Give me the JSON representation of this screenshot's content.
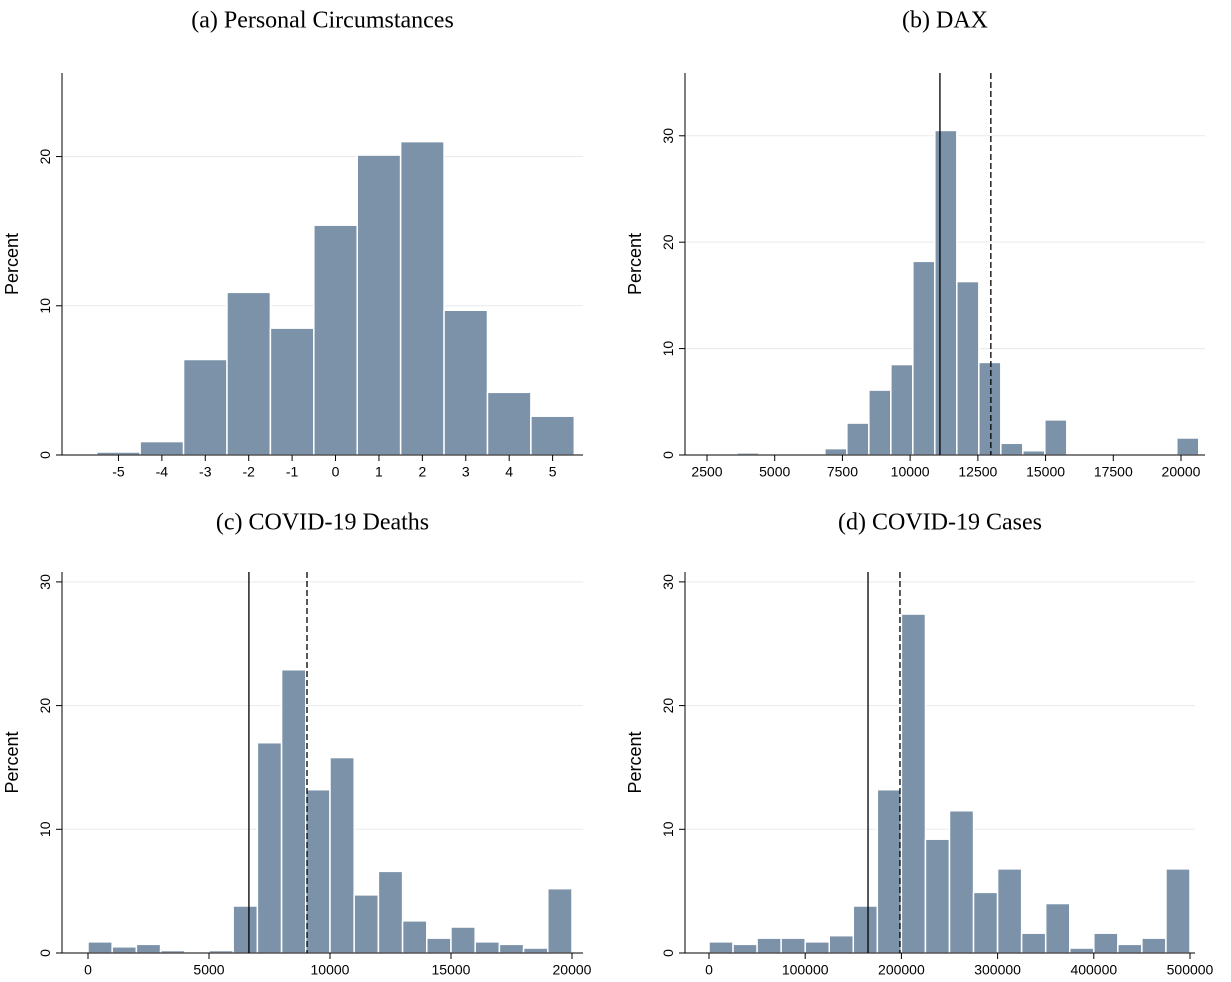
{
  "chart_data": [
    {
      "type": "histogram",
      "title": "(a) Personal Circumstances",
      "ylabel": "Percent",
      "color": "#7b92a8",
      "bins": [
        -5.5,
        -4.5,
        -3.5,
        -2.5,
        -1.5,
        -0.5,
        0.5,
        1.5,
        2.5,
        3.5,
        4.5,
        5.5
      ],
      "values": [
        0.2,
        0.9,
        6.4,
        10.9,
        8.5,
        15.4,
        20.1,
        21.0,
        9.7,
        4.2,
        2.6
      ],
      "xlim": [
        -6.3,
        5.7
      ],
      "ylim": [
        0,
        25.6
      ],
      "xticks": [
        -5,
        -4,
        -3,
        -2,
        -1,
        0,
        1,
        2,
        3,
        4,
        5
      ],
      "yticks": [
        0,
        10,
        20
      ],
      "grid": true
    },
    {
      "type": "histogram",
      "title": "(b) DAX",
      "ylabel": "Percent",
      "color": "#7b92a8",
      "bins": [
        2792,
        3604,
        4416,
        5228,
        6040,
        6852,
        7664,
        8476,
        9288,
        10100,
        10912,
        11724,
        12536,
        13348,
        14160,
        14972,
        15784,
        16596,
        17408,
        18220,
        19032,
        19844,
        20656
      ],
      "values": [
        0,
        0.2,
        0,
        0.1,
        0.1,
        0.6,
        3.0,
        6.1,
        8.5,
        18.2,
        30.5,
        16.3,
        8.7,
        1.1,
        0.4,
        3.3,
        0.1,
        0.1,
        0,
        0,
        0,
        1.6
      ],
      "xlim": [
        1688,
        20886
      ],
      "ylim": [
        0,
        35.9
      ],
      "xticks": [
        2500,
        5000,
        7500,
        10000,
        12500,
        15000,
        17500,
        20000
      ],
      "yticks": [
        0,
        10,
        20,
        30
      ],
      "grid": true,
      "vlines": [
        {
          "x": 11100,
          "style": "solid",
          "color": "#000000"
        },
        {
          "x": 12980,
          "style": "dashed",
          "color": "#000000"
        }
      ]
    },
    {
      "type": "histogram",
      "title": "(c) COVID-19 Deaths",
      "ylabel": "Percent",
      "color": "#7b92a8",
      "bins": [
        0,
        1000,
        2000,
        3000,
        4000,
        5000,
        6000,
        7000,
        8000,
        9000,
        10000,
        11000,
        12000,
        13000,
        14000,
        15000,
        16000,
        17000,
        18000,
        19000,
        20000
      ],
      "values": [
        0.9,
        0.5,
        0.7,
        0.2,
        0.1,
        0.2,
        3.8,
        17.0,
        22.9,
        13.2,
        15.8,
        4.7,
        6.6,
        2.6,
        1.2,
        2.1,
        0.9,
        0.7,
        0.4,
        5.2
      ],
      "xlim": [
        -1074,
        20455
      ],
      "ylim": [
        0,
        30.8
      ],
      "xticks": [
        0,
        5000,
        10000,
        15000,
        20000
      ],
      "yticks": [
        0,
        10,
        20,
        30
      ],
      "grid": true,
      "vlines": [
        {
          "x": 6650,
          "style": "solid",
          "color": "#000000"
        },
        {
          "x": 9050,
          "style": "dashed",
          "color": "#000000"
        }
      ]
    },
    {
      "type": "histogram",
      "title": "(d) COVID-19 Cases",
      "ylabel": "Percent",
      "color": "#7b92a8",
      "bins": [
        0,
        25000,
        50000,
        75000,
        100000,
        125000,
        150000,
        175000,
        200000,
        225000,
        250000,
        275000,
        300000,
        325000,
        350000,
        375000,
        400000,
        425000,
        450000,
        475000,
        500000
      ],
      "values": [
        0.9,
        0.7,
        1.2,
        1.2,
        0.9,
        1.4,
        3.8,
        13.2,
        27.4,
        9.2,
        11.5,
        4.9,
        6.8,
        1.6,
        4.0,
        0.4,
        1.6,
        0.7,
        1.2,
        6.8
      ],
      "xlim": [
        -24950,
        505200
      ],
      "ylim": [
        0,
        30.8
      ],
      "xticks": [
        0,
        100000,
        200000,
        300000,
        400000,
        500000
      ],
      "yticks": [
        0,
        10,
        20,
        30
      ],
      "grid": true,
      "vlines": [
        {
          "x": 165300,
          "style": "solid",
          "color": "#000000"
        },
        {
          "x": 198500,
          "style": "dashed",
          "color": "#000000"
        }
      ]
    }
  ]
}
